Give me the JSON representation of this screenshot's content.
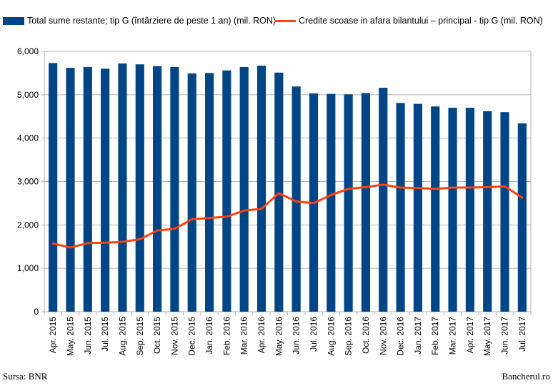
{
  "chart_data": {
    "type": "bar",
    "categories": [
      "Apr. 2015",
      "May. 2015",
      "Jun. 2015",
      "Jul. 2015",
      "Aug. 2015",
      "Sep. 2015",
      "Oct. 2015",
      "Nov. 2015",
      "Dec. 2015",
      "Jan. 2016",
      "Feb. 2016",
      "Mar. 2016",
      "Apr. 2016",
      "May. 2016",
      "Jun. 2016",
      "Jul. 2016",
      "Aug. 2016",
      "Sep. 2016",
      "Oct. 2016",
      "Nov. 2016",
      "Dec. 2016",
      "Jan. 2017",
      "Feb. 2017",
      "Mar. 2017",
      "Apr. 2017",
      "May. 2017",
      "Jun. 2017",
      "Jul. 2017"
    ],
    "series": [
      {
        "name": "Total sume restante; tip G (întârziere de peste 1 an) (mil. RON)",
        "kind": "bar",
        "color": "#004586",
        "values": [
          5730,
          5620,
          5640,
          5600,
          5720,
          5700,
          5660,
          5640,
          5490,
          5500,
          5560,
          5640,
          5670,
          5510,
          5190,
          5030,
          5020,
          5010,
          5040,
          5160,
          4810,
          4790,
          4730,
          4700,
          4700,
          4620,
          4600,
          4340
        ]
      },
      {
        "name": "Credite scoase in afara bilantului – principal - tip G (mil. RON)",
        "kind": "line",
        "color": "#ff420e",
        "values": [
          1570,
          1480,
          1580,
          1590,
          1610,
          1670,
          1870,
          1910,
          2130,
          2160,
          2190,
          2330,
          2370,
          2730,
          2540,
          2500,
          2690,
          2830,
          2870,
          2930,
          2860,
          2850,
          2830,
          2860,
          2860,
          2870,
          2890,
          2630
        ]
      }
    ],
    "ylim": [
      0,
      6000
    ],
    "yticks": [
      "0",
      "1,000",
      "2,000",
      "3,000",
      "4,000",
      "5,000",
      "6,000"
    ],
    "ytick_values": [
      0,
      1000,
      2000,
      3000,
      4000,
      5000,
      6000
    ],
    "grid": true,
    "legend": "top"
  },
  "footer": {
    "source": "Sursa: BNR",
    "brand": "Bancherul.ro"
  }
}
